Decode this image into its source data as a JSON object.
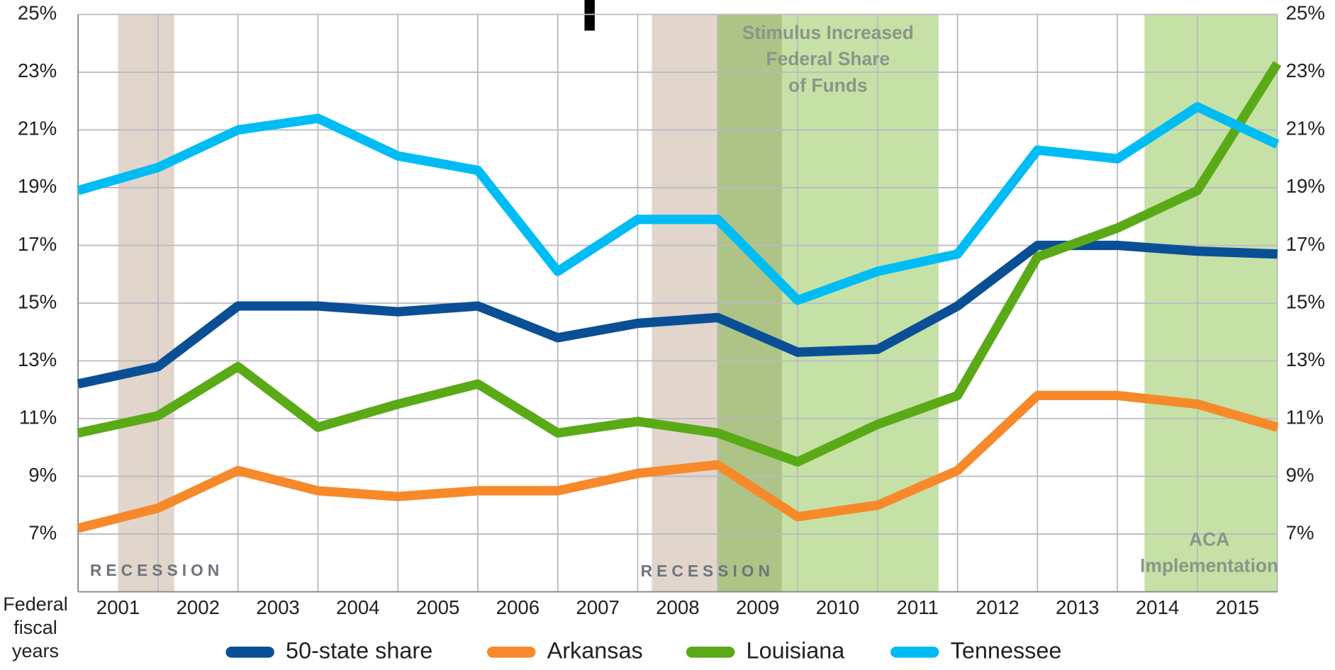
{
  "chart_data": {
    "type": "line",
    "xlabel": "Federal fiscal years",
    "categories": [
      "2001",
      "2002",
      "2003",
      "2004",
      "2005",
      "2006",
      "2007",
      "2008",
      "2009",
      "2010",
      "2011",
      "2012",
      "2013",
      "2014",
      "2015",
      null
    ],
    "series": [
      {
        "name": "50-state share",
        "color": "#0a4f96",
        "values": [
          12.2,
          12.8,
          14.9,
          14.9,
          14.7,
          14.9,
          13.8,
          14.3,
          14.5,
          13.3,
          13.4,
          14.9,
          17.0,
          17.0,
          16.8,
          16.7
        ]
      },
      {
        "name": "Arkansas",
        "color": "#f7892a",
        "values": [
          7.2,
          7.9,
          9.2,
          8.5,
          8.3,
          8.5,
          8.5,
          9.1,
          9.4,
          7.6,
          8.0,
          9.2,
          11.8,
          11.8,
          11.5,
          10.7
        ]
      },
      {
        "name": "Louisiana",
        "color": "#5aaa17",
        "values": [
          10.5,
          11.1,
          12.8,
          10.7,
          11.5,
          12.2,
          10.5,
          10.9,
          10.5,
          9.5,
          10.8,
          11.8,
          16.6,
          17.6,
          18.9,
          23.3
        ]
      },
      {
        "name": "Tennessee",
        "color": "#00bcf5",
        "values": [
          18.9,
          19.7,
          21.0,
          21.4,
          20.1,
          19.6,
          16.1,
          17.9,
          17.9,
          15.1,
          16.1,
          16.7,
          20.3,
          20.0,
          21.8,
          20.5
        ]
      }
    ],
    "ylim": [
      5,
      25
    ],
    "yticks": [
      {
        "value": 7,
        "label": "7%"
      },
      {
        "value": 9,
        "label": "9%"
      },
      {
        "value": 11,
        "label": "11%"
      },
      {
        "value": 13,
        "label": "13%"
      },
      {
        "value": 15,
        "label": "15%"
      },
      {
        "value": 17,
        "label": "17%"
      },
      {
        "value": 19,
        "label": "19%"
      },
      {
        "value": 21,
        "label": "21%"
      },
      {
        "value": 23,
        "label": "23%"
      },
      {
        "value": 25,
        "label": "25%"
      }
    ],
    "grid": true,
    "legend": "bottom",
    "annotations": {
      "recession": "RECESSION",
      "stimulus": [
        "Stimulus Increased",
        "Federal Share",
        "of Funds"
      ],
      "aca": [
        "ACA",
        "Implementation"
      ]
    }
  }
}
